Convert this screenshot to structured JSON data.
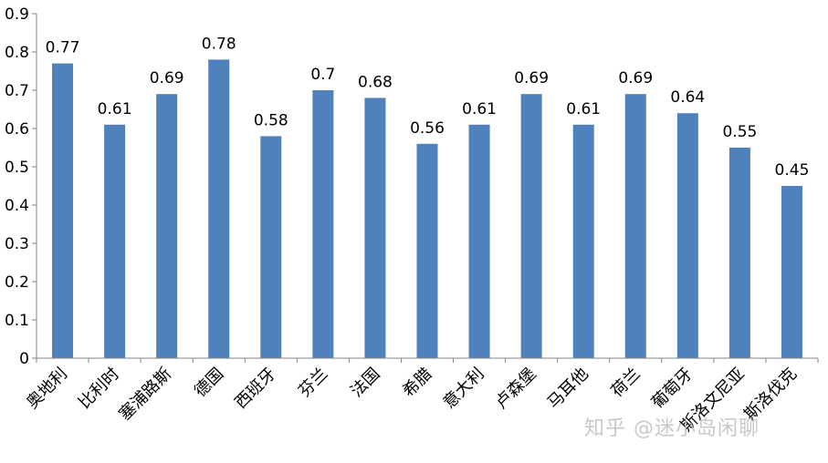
{
  "chart_data": {
    "type": "bar",
    "categories": [
      "奥地利",
      "比利时",
      "塞浦路斯",
      "德国",
      "西班牙",
      "芬兰",
      "法国",
      "希腊",
      "意大利",
      "卢森堡",
      "马耳他",
      "荷兰",
      "葡萄牙",
      "斯洛文尼亚",
      "斯洛伐克"
    ],
    "values": [
      0.77,
      0.61,
      0.69,
      0.78,
      0.58,
      0.7,
      0.68,
      0.56,
      0.61,
      0.69,
      0.61,
      0.69,
      0.64,
      0.55,
      0.45
    ],
    "data_labels": [
      "0.77",
      "0.61",
      "0.69",
      "0.78",
      "0.58",
      "0.7",
      "0.68",
      "0.56",
      "0.61",
      "0.69",
      "0.61",
      "0.69",
      "0.64",
      "0.55",
      "0.45"
    ],
    "ylim": [
      0,
      0.9
    ],
    "yticks": [
      "0",
      "0.1",
      "0.2",
      "0.3",
      "0.4",
      "0.5",
      "0.6",
      "0.7",
      "0.8",
      "0.9"
    ],
    "grid": false,
    "bar_color": "#4f81bd"
  },
  "watermark": "知乎 @迷小岛闲聊"
}
